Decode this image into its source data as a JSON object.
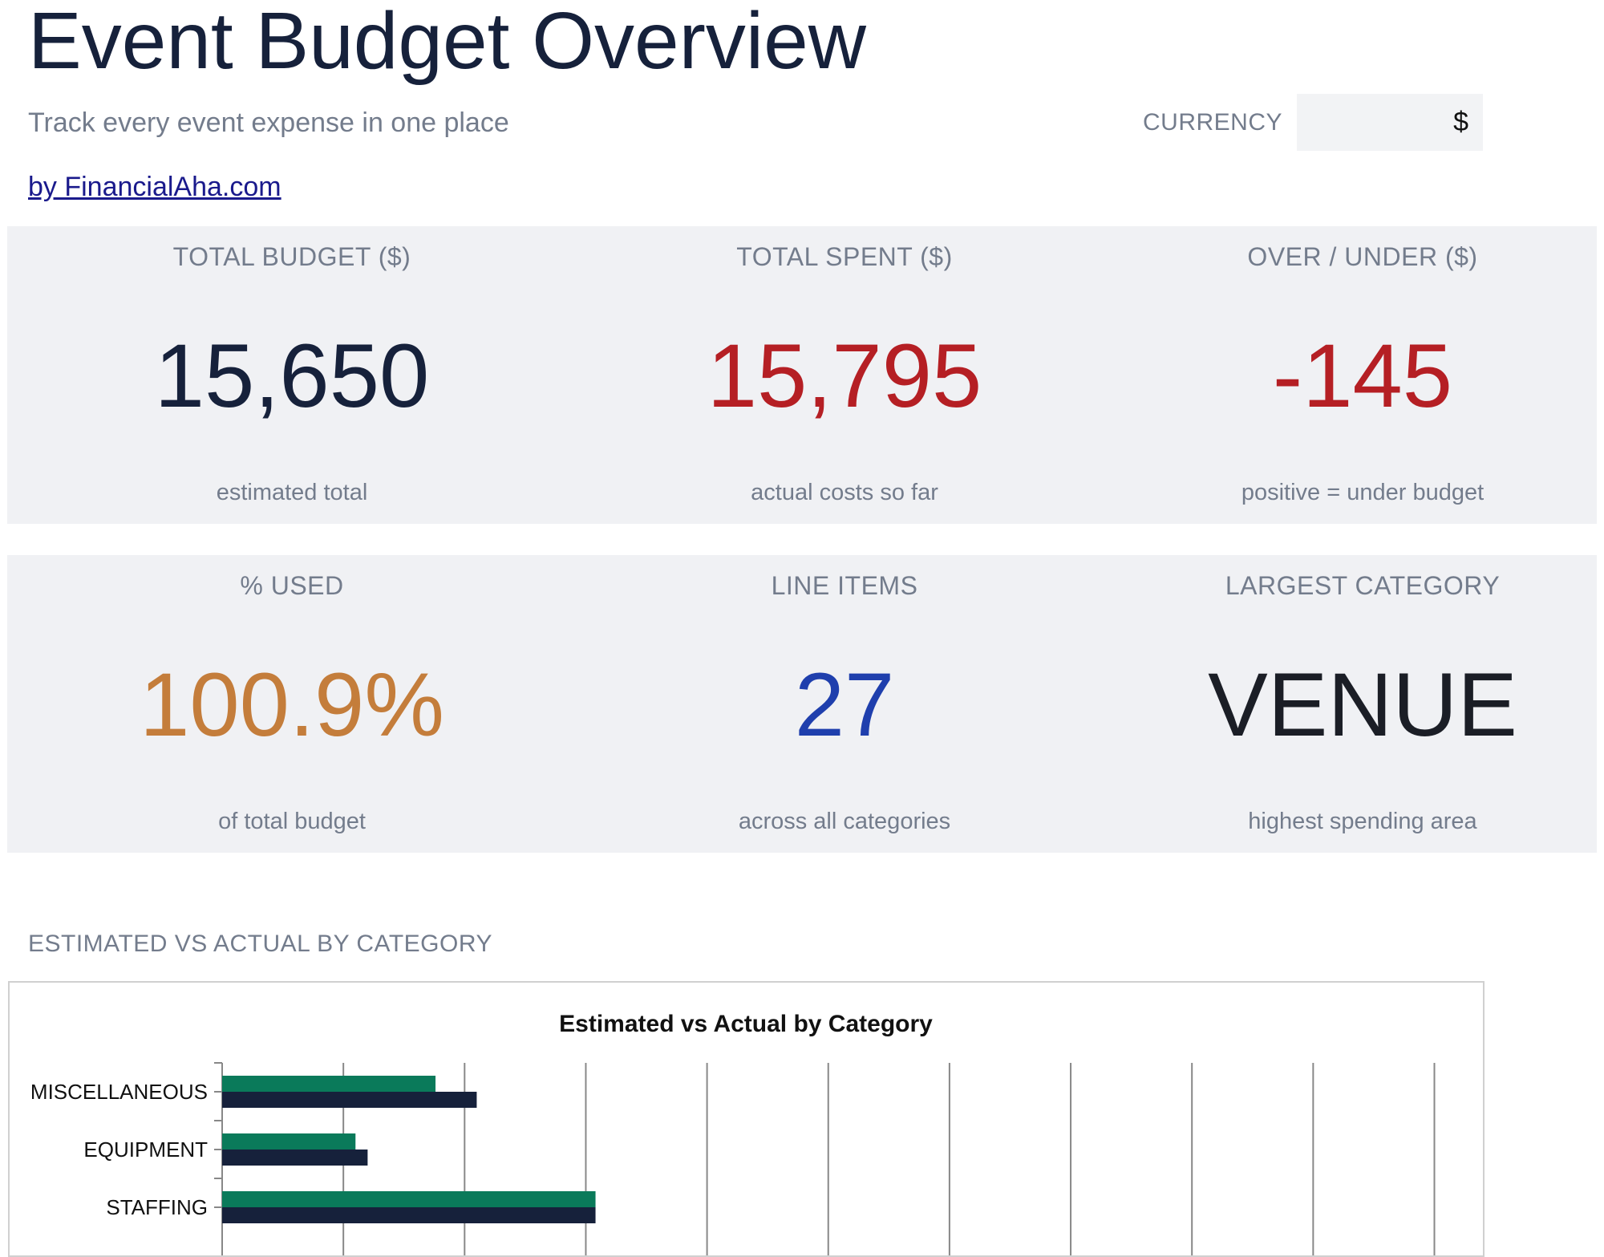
{
  "header": {
    "title": "Event Budget Overview",
    "subtitle": "Track every event expense in one place",
    "credit": "by FinancialAha.com",
    "currency_label": "CURRENCY",
    "currency_value": "$"
  },
  "kpis_row1": [
    {
      "label": "TOTAL BUDGET ($)",
      "value": "15,650",
      "note": "estimated total",
      "color": "#16213b"
    },
    {
      "label": "TOTAL SPENT ($)",
      "value": "15,795",
      "note": "actual costs so far",
      "color": "#b51f24"
    },
    {
      "label": "OVER / UNDER ($)",
      "value": "-145",
      "note": "positive = under budget",
      "color": "#b51f24"
    }
  ],
  "kpis_row2": [
    {
      "label": "% USED",
      "value": "100.9%",
      "note": "of total budget",
      "color": "#c47d3b"
    },
    {
      "label": "LINE ITEMS",
      "value": "27",
      "note": "across all categories",
      "color": "#1f3fad"
    },
    {
      "label": "LARGEST CATEGORY",
      "value": "VENUE",
      "note": "highest spending area",
      "color": "#1b1e26"
    }
  ],
  "section": {
    "chart_heading": "ESTIMATED VS ACTUAL BY CATEGORY"
  },
  "chart_data": {
    "type": "bar",
    "orientation": "horizontal",
    "title": "Estimated vs Actual by Category",
    "categories": [
      "MISCELLANEOUS",
      "EQUIPMENT",
      "STAFFING"
    ],
    "series": [
      {
        "values": [
          880,
          550,
          1540
        ],
        "color": "#0a7a5a"
      },
      {
        "values": [
          1050,
          600,
          1540
        ],
        "color": "#16213b"
      }
    ],
    "xlim": [
      0,
      5000
    ],
    "grid_step": 500,
    "grid": true
  }
}
